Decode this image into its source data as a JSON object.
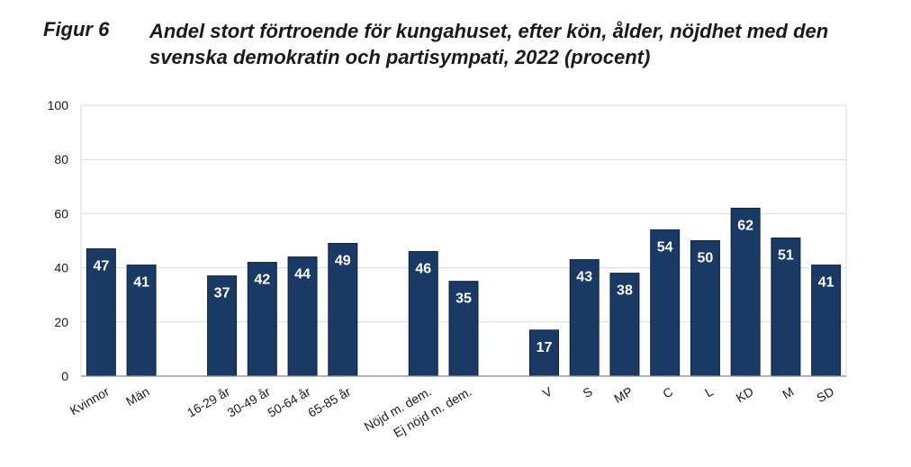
{
  "figure": {
    "label": "Figur 6",
    "title": "Andel stort förtroende för kungahuset, efter kön, ålder, nöjdhet med den svenska demokratin och partisympati, 2022 (procent)"
  },
  "colors": {
    "bar": "#1a3a66",
    "grid": "#d9d9d9",
    "axis": "#888888",
    "text": "#1a1a1a"
  },
  "chart_data": {
    "type": "bar",
    "categories": [
      "Kvinnor",
      "Män",
      "",
      "16-29 år",
      "30-49 år",
      "50-64 år",
      "65-85 år",
      "",
      "Nöjd m. dem.",
      "Ej nöjd m. dem.",
      "",
      "V",
      "S",
      "MP",
      "C",
      "L",
      "KD",
      "M",
      "SD"
    ],
    "values": [
      47,
      41,
      null,
      37,
      42,
      44,
      49,
      null,
      46,
      35,
      null,
      17,
      43,
      38,
      54,
      50,
      62,
      51,
      41
    ],
    "ylim": [
      0,
      100
    ],
    "yticks": [
      0,
      20,
      40,
      60,
      80,
      100
    ],
    "grid": true,
    "data_labels": true
  }
}
